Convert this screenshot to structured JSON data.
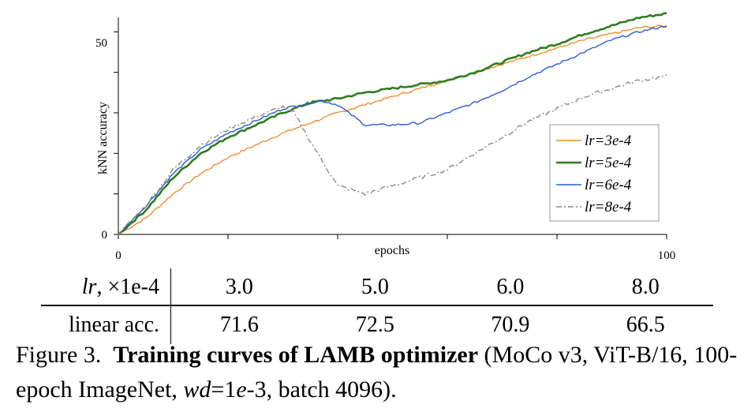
{
  "chart_data": {
    "type": "line",
    "xlabel": "epochs",
    "ylabel": "kNN accuracy",
    "xlim": [
      0,
      100
    ],
    "ylim": [
      0,
      52
    ],
    "x_ticks": [
      "0",
      "100"
    ],
    "y_ticks": [
      "0",
      "50"
    ],
    "legend_position": "right",
    "legend": [
      "lr=3e-4",
      "lr=5e-4",
      "lr=6e-4",
      "lr=8e-4"
    ],
    "series": [
      {
        "name": "lr=3e-4",
        "color": "#f28e2b",
        "style": "solid",
        "x": [
          0,
          5,
          10,
          15,
          20,
          25,
          30,
          35,
          40,
          45,
          50,
          55,
          60,
          65,
          70,
          75,
          80,
          85,
          90,
          95,
          100
        ],
        "y": [
          0,
          4,
          10,
          15,
          19,
          22,
          25,
          27.5,
          30,
          32,
          34,
          36,
          38,
          40,
          42,
          44,
          46,
          48,
          49.5,
          51,
          51.5
        ]
      },
      {
        "name": "lr=5e-4",
        "color": "#2e7d1f",
        "style": "solid",
        "x": [
          0,
          5,
          10,
          15,
          20,
          25,
          30,
          35,
          40,
          45,
          50,
          55,
          60,
          65,
          70,
          75,
          80,
          85,
          90,
          95,
          100
        ],
        "y": [
          0,
          6,
          14,
          20,
          24,
          27,
          30,
          32.5,
          33.5,
          35,
          36,
          37,
          38,
          40,
          42.5,
          45,
          47,
          49.5,
          51.5,
          53.5,
          54.5
        ]
      },
      {
        "name": "lr=6e-4",
        "color": "#2a5bd7",
        "style": "solid",
        "x": [
          0,
          5,
          10,
          15,
          20,
          25,
          30,
          35,
          37,
          40,
          45,
          50,
          55,
          60,
          65,
          70,
          75,
          80,
          85,
          90,
          95,
          100
        ],
        "y": [
          0,
          7,
          15,
          21,
          25,
          28,
          31,
          32.5,
          33,
          32,
          27,
          27,
          27.5,
          30,
          32.5,
          35.5,
          39,
          42,
          45,
          48,
          50,
          51.5
        ]
      },
      {
        "name": "lr=8e-4",
        "color": "#888888",
        "style": "dashdot",
        "x": [
          0,
          5,
          10,
          15,
          20,
          25,
          30,
          32,
          35,
          40,
          45,
          50,
          55,
          60,
          65,
          70,
          75,
          80,
          85,
          90,
          95,
          100
        ],
        "y": [
          0,
          7,
          16,
          22,
          26,
          29,
          31.5,
          30,
          23,
          12,
          10,
          12,
          14,
          16,
          20,
          24,
          28,
          31,
          34,
          36,
          38,
          39
        ]
      }
    ]
  },
  "table": {
    "header": {
      "label_italic": "lr",
      "label_rest": ", ×1e-4",
      "values": [
        "3.0",
        "5.0",
        "6.0",
        "8.0"
      ]
    },
    "row": {
      "label": "linear acc.",
      "values": [
        "71.6",
        "72.5",
        "70.9",
        "66.5"
      ]
    }
  },
  "caption": {
    "prefix": "Figure 3.",
    "title": "Training curves of LAMB optimizer",
    "rest1": " (MoCo v3, ViT-B/16, 100-epoch ImageNet, ",
    "wd": "wd",
    "eq": "=1",
    "e": "e",
    "rest2": "-3, batch 4096)."
  }
}
